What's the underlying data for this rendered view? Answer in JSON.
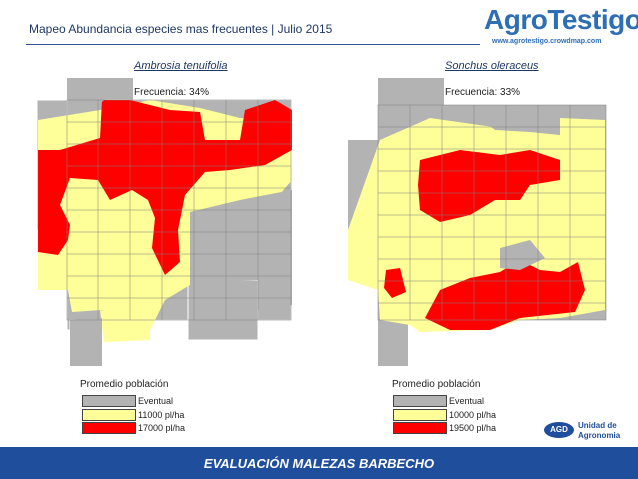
{
  "header": {
    "title": "Mapeo Abundancia especies mas frecuentes | Julio 2015",
    "logo_text": "AgroTestigo",
    "logo_url": "www.agrotestigo.crowdmap.com"
  },
  "maps": [
    {
      "species": "Ambrosia tenuifolia",
      "frequency": "Frecuencia: 34%",
      "legend_title": "Promedio población",
      "legend": [
        {
          "label": "Eventual",
          "color": "#b3b3b3"
        },
        {
          "label": "11000 pl/ha",
          "color": "#ffff99"
        },
        {
          "label": "17000 pl/ha",
          "color": "#ff0000"
        }
      ]
    },
    {
      "species": "Sonchus oleraceus",
      "frequency": "Frecuencia: 33%",
      "legend_title": "Promedio población",
      "legend": [
        {
          "label": "Eventual",
          "color": "#b3b3b3"
        },
        {
          "label": "10000 pl/ha",
          "color": "#ffff99"
        },
        {
          "label": "19500 pl/ha",
          "color": "#ff0000"
        }
      ]
    }
  ],
  "agd": {
    "badge": "AGD",
    "line1": "Unidad de",
    "line2": "Agronomia"
  },
  "footer": {
    "text": "EVALUACIÓN MALEZAS BARBECHO"
  },
  "colors": {
    "eventual": "#b3b3b3",
    "medium": "#ffff99",
    "high": "#ff0000",
    "accent": "#1f4e9c"
  }
}
